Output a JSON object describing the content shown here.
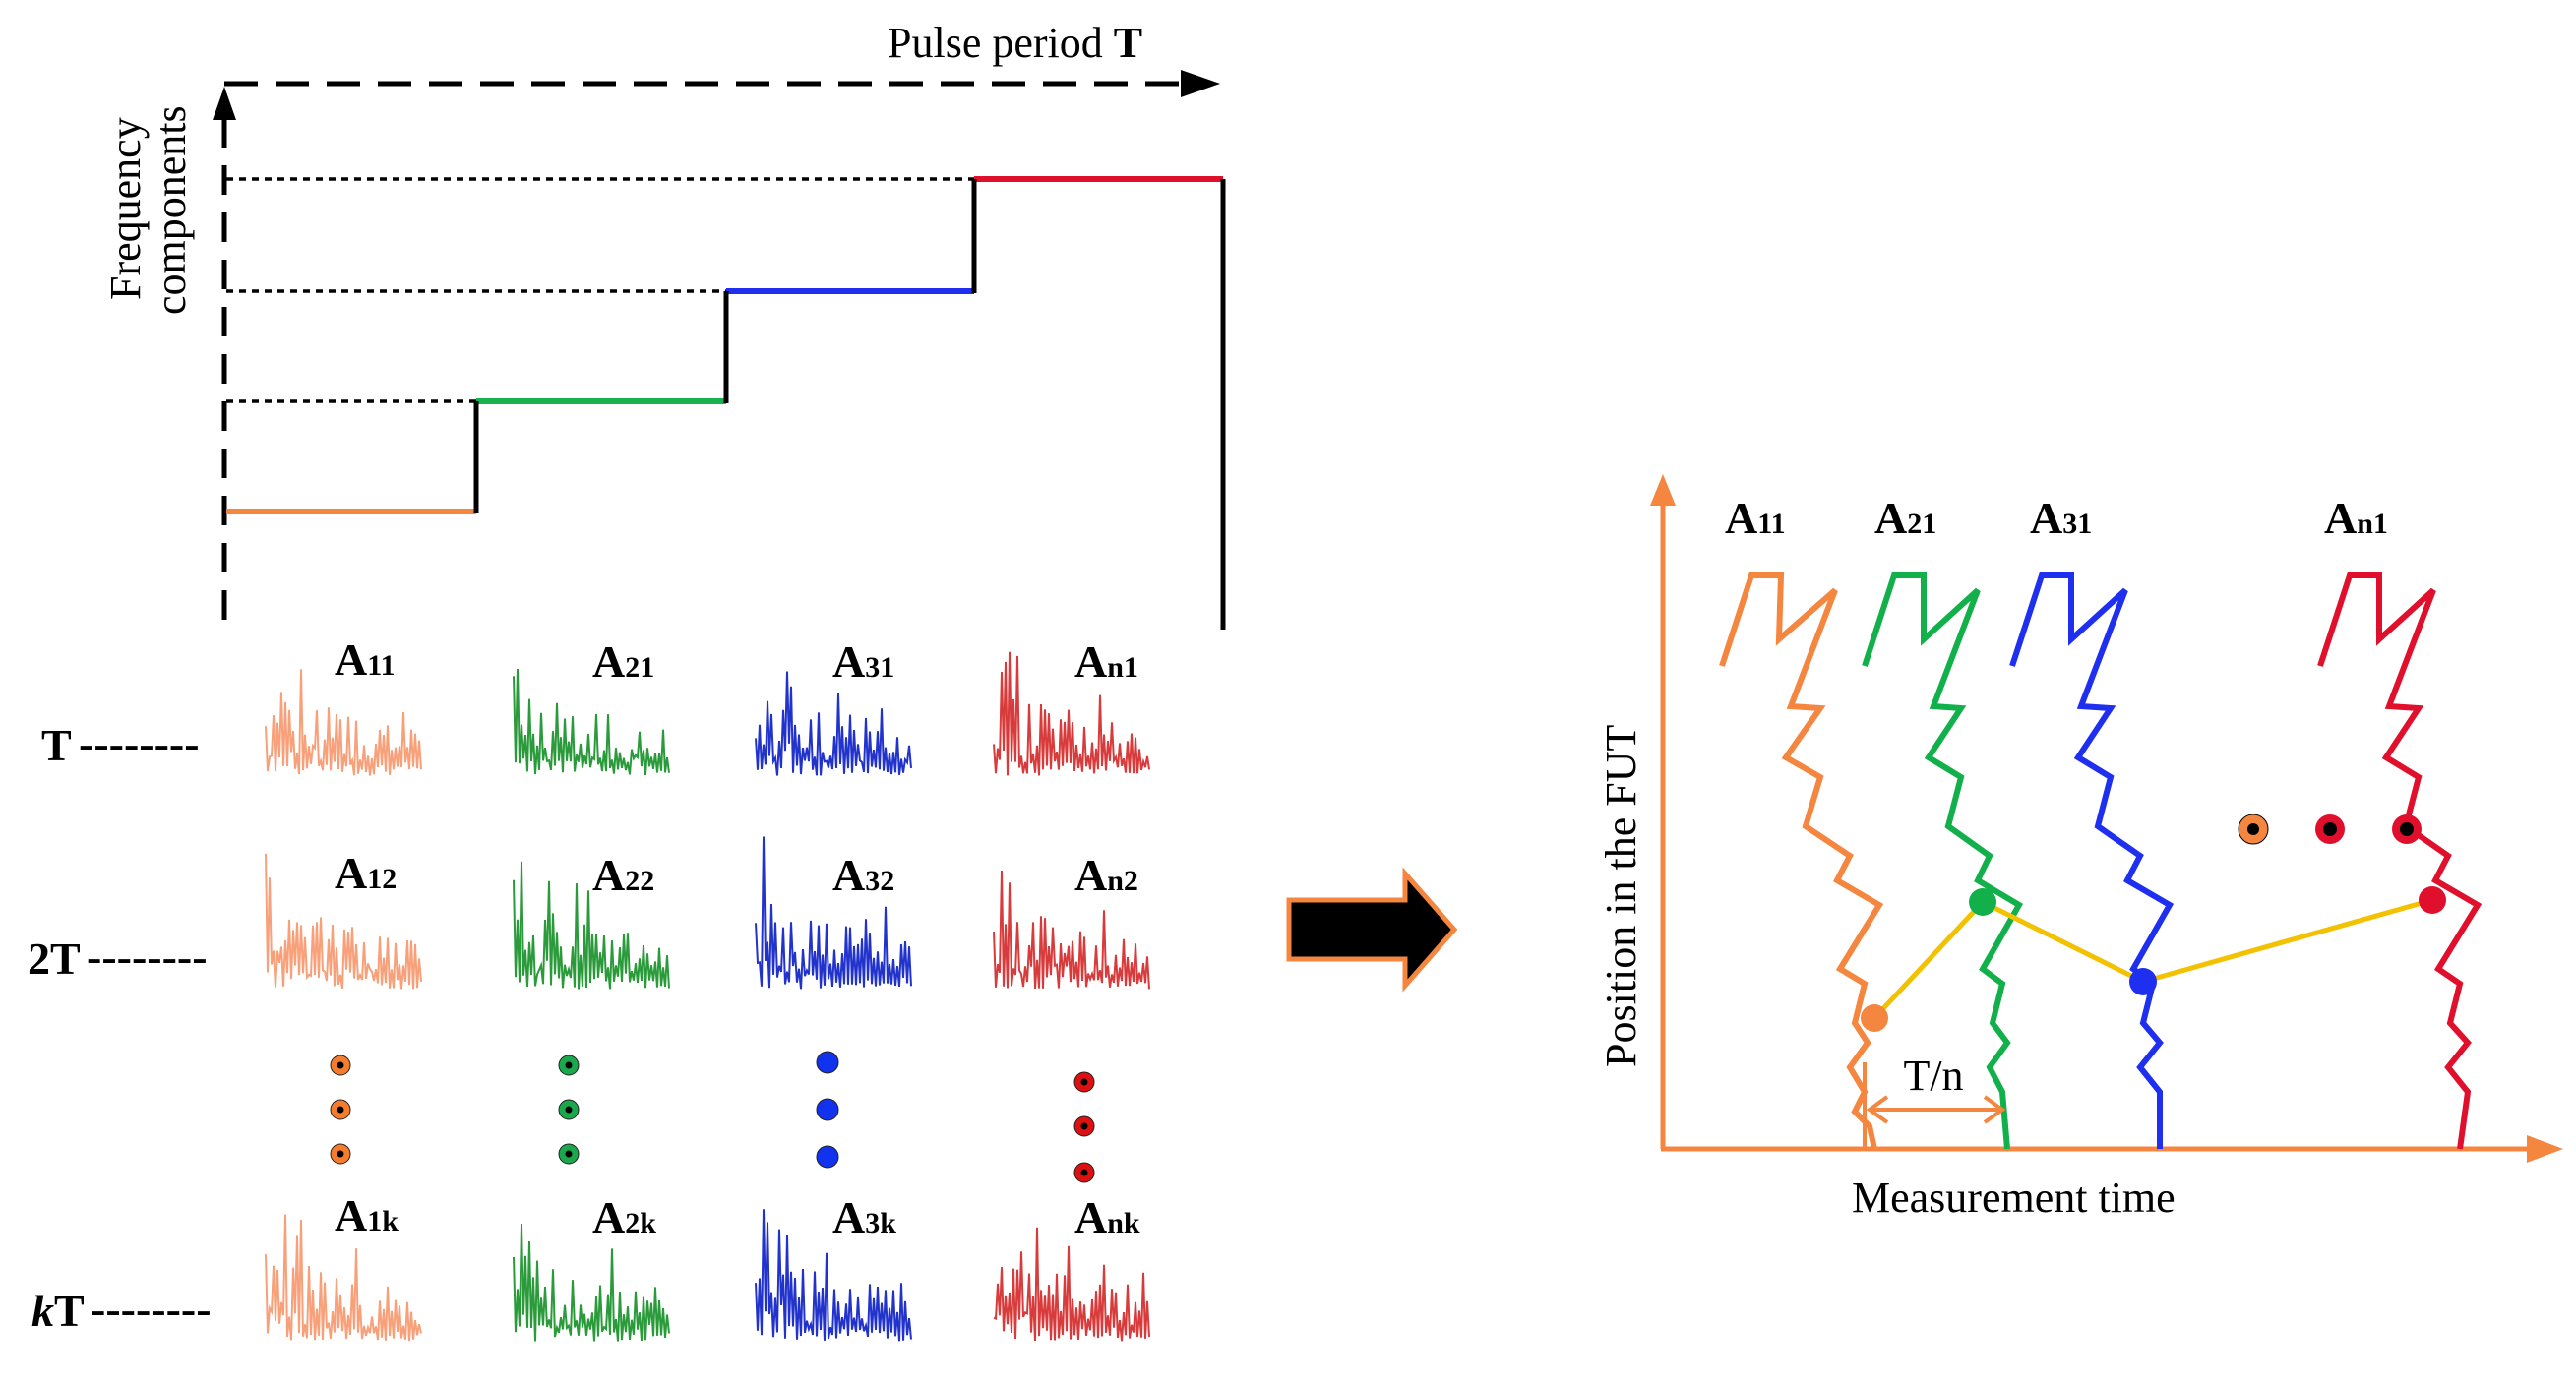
{
  "left_panel": {
    "x_axis_label": "Pulse period",
    "x_axis_symbol": "T",
    "y_axis_label_line1": "Frequency",
    "y_axis_label_line2": "components",
    "segment_colors": [
      "#f4863f",
      "#1ab24f",
      "#1f2ff0",
      "#e0102d"
    ],
    "rows": [
      {
        "label": "T",
        "amplitudes": [
          [
            "A",
            "11"
          ],
          [
            "A",
            "21"
          ],
          [
            "A",
            "31"
          ],
          [
            "A",
            "n1"
          ]
        ]
      },
      {
        "label": "2T",
        "amplitudes": [
          [
            "A",
            "12"
          ],
          [
            "A",
            "22"
          ],
          [
            "A",
            "32"
          ],
          [
            "A",
            "n2"
          ]
        ]
      },
      {
        "label_italic": "k",
        "label": "T",
        "amplitudes": [
          [
            "A",
            "1k"
          ],
          [
            "A",
            "2k"
          ],
          [
            "A",
            "3k"
          ],
          [
            "A",
            "nk"
          ]
        ]
      }
    ],
    "trace_colors": [
      "#f7a07a",
      "#2a9a3a",
      "#2233cc",
      "#d83b3b"
    ],
    "dot_colors": [
      "#f47c2c",
      "#1aa84a",
      "#1133ee",
      "#dd1111"
    ],
    "row_dash": "--------"
  },
  "right_panel": {
    "x_axis_label": "Measurement time",
    "y_axis_label": "Position in the FUT",
    "interval_label": "T/n",
    "axis_color": "#f4863f",
    "connect_color": "#f2c200",
    "trace_labels": [
      [
        "A",
        "11"
      ],
      [
        "A",
        "21"
      ],
      [
        "A",
        "31"
      ],
      [
        "A",
        "n1"
      ]
    ],
    "trace_colors": [
      "#f4863f",
      "#12b04a",
      "#1f2ff0",
      "#e0102d"
    ],
    "ellipsis_dot_fill": [
      "#f4863f",
      "#e0102d",
      "#e0102d"
    ]
  }
}
